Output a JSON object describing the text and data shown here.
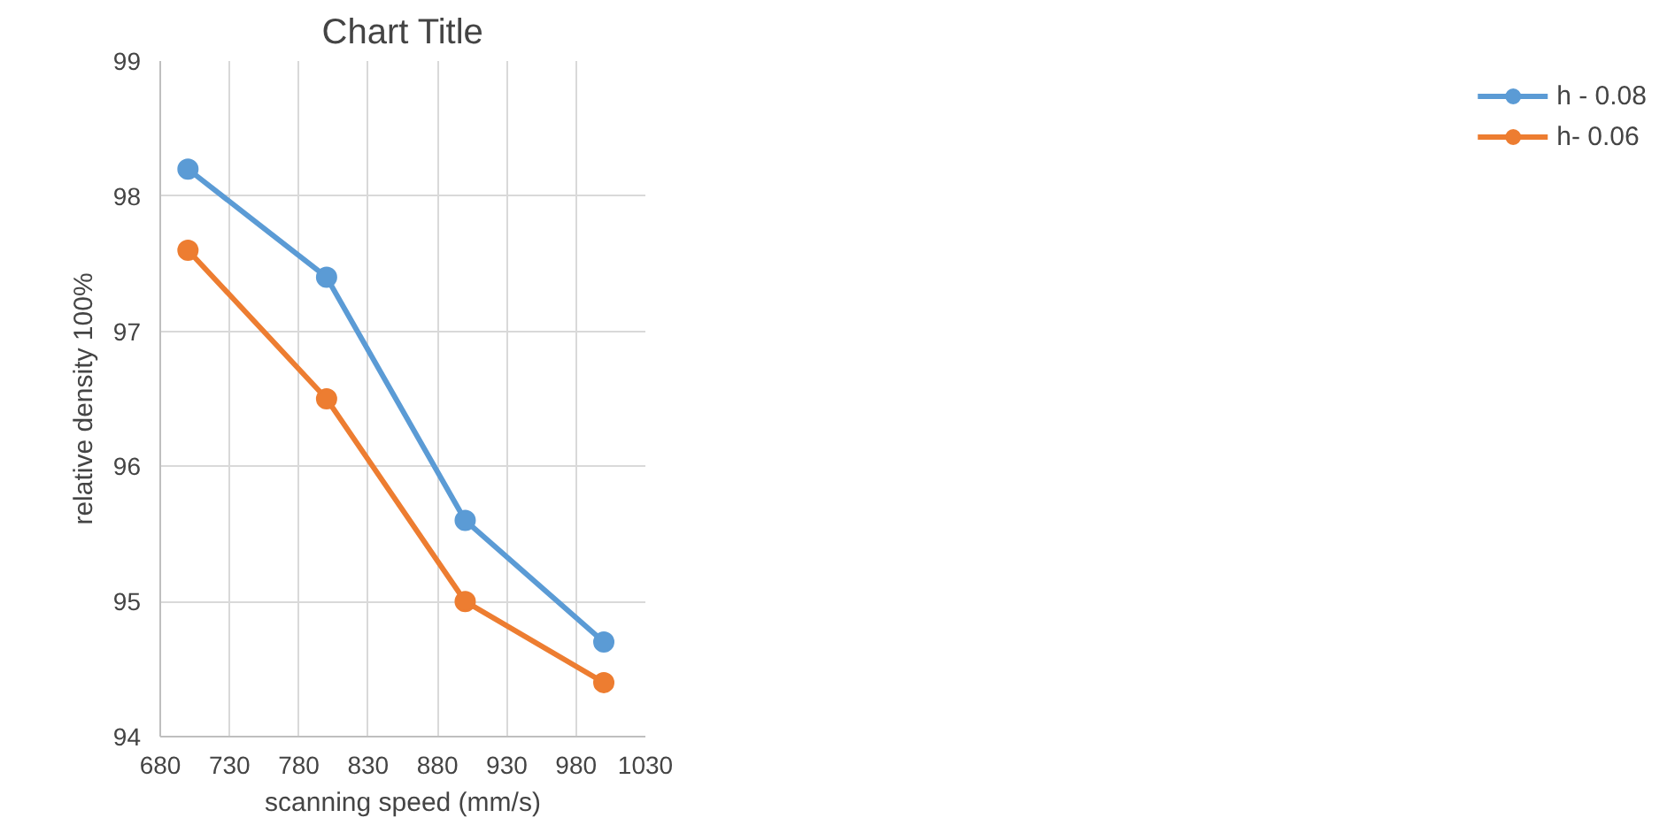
{
  "chart_data": {
    "type": "line",
    "title": "Chart Title",
    "xlabel": "scanning speed (mm/s)",
    "ylabel": "relative density 100%",
    "x": [
      700,
      800,
      900,
      1000
    ],
    "series": [
      {
        "name": "h - 0.08",
        "color": "#5b9bd5",
        "values": [
          98.2,
          97.4,
          95.6,
          94.7
        ]
      },
      {
        "name": "h- 0.06",
        "color": "#ed7d31",
        "values": [
          97.6,
          96.5,
          95.0,
          94.4
        ]
      }
    ],
    "xlim": [
      680,
      1030
    ],
    "xticks": [
      680,
      730,
      780,
      830,
      880,
      930,
      980,
      1030
    ],
    "ylim": [
      94,
      99
    ],
    "yticks": [
      94,
      95,
      96,
      97,
      98,
      99
    ],
    "grid": true,
    "legend": "right",
    "marker": "circle",
    "line_style": "solid"
  }
}
